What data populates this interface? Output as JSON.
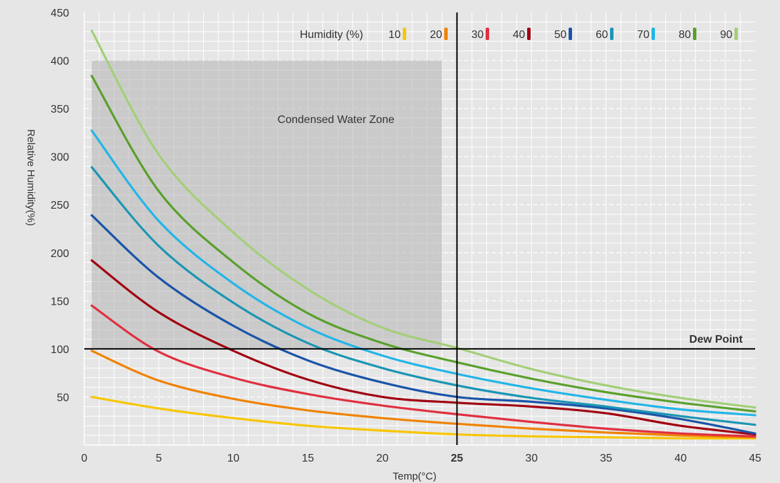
{
  "chart_data": {
    "type": "line",
    "xlabel": "Temp(°C)",
    "ylabel": "Relative Humidity(%)",
    "xlim": [
      0,
      45
    ],
    "ylim": [
      0,
      450
    ],
    "xticks": [
      "0",
      "5",
      "10",
      "15",
      "20",
      "25",
      "30",
      "35",
      "40",
      "45"
    ],
    "yticks": [
      "50",
      "100",
      "150",
      "200",
      "250",
      "300",
      "350",
      "400",
      "450"
    ],
    "grid": true,
    "legend": {
      "title": "Humidity (%)",
      "placement": "top"
    },
    "zone": {
      "label": "Condensed Water Zone",
      "x": [
        0.5,
        24
      ],
      "y": [
        100,
        400
      ]
    },
    "dew_point": {
      "label": "Dew Point",
      "y": 100
    },
    "reference_x": {
      "value": 25,
      "label": "25"
    },
    "x": [
      0.5,
      5,
      10,
      15,
      20,
      25,
      30,
      35,
      40,
      45
    ],
    "series": [
      {
        "name": "10",
        "color": "#f7c600",
        "values": [
          50,
          38,
          28,
          20,
          15,
          11,
          9,
          8,
          7,
          7
        ]
      },
      {
        "name": "20",
        "color": "#f08200",
        "values": [
          98,
          67,
          48,
          36,
          28,
          22,
          17,
          13,
          10,
          8
        ]
      },
      {
        "name": "30",
        "color": "#e03040",
        "values": [
          145,
          97,
          70,
          53,
          41,
          32,
          24,
          17,
          12,
          9
        ]
      },
      {
        "name": "40",
        "color": "#a00010",
        "values": [
          192,
          138,
          98,
          68,
          50,
          44,
          40,
          33,
          20,
          11
        ]
      },
      {
        "name": "50",
        "color": "#1a54a8",
        "values": [
          239,
          174,
          124,
          88,
          65,
          50,
          45,
          38,
          27,
          12
        ]
      },
      {
        "name": "60",
        "color": "#1b96b4",
        "values": [
          289,
          207,
          148,
          106,
          80,
          62,
          49,
          40,
          30,
          21
        ]
      },
      {
        "name": "70",
        "color": "#22b5e8",
        "values": [
          327,
          233,
          168,
          122,
          93,
          74,
          59,
          47,
          37,
          31
        ]
      },
      {
        "name": "80",
        "color": "#5aa02c",
        "values": [
          384,
          264,
          190,
          137,
          106,
          86,
          69,
          55,
          44,
          35
        ]
      },
      {
        "name": "90",
        "color": "#a3cf78",
        "values": [
          431,
          302,
          221,
          162,
          122,
          101,
          79,
          62,
          49,
          39
        ]
      }
    ]
  }
}
